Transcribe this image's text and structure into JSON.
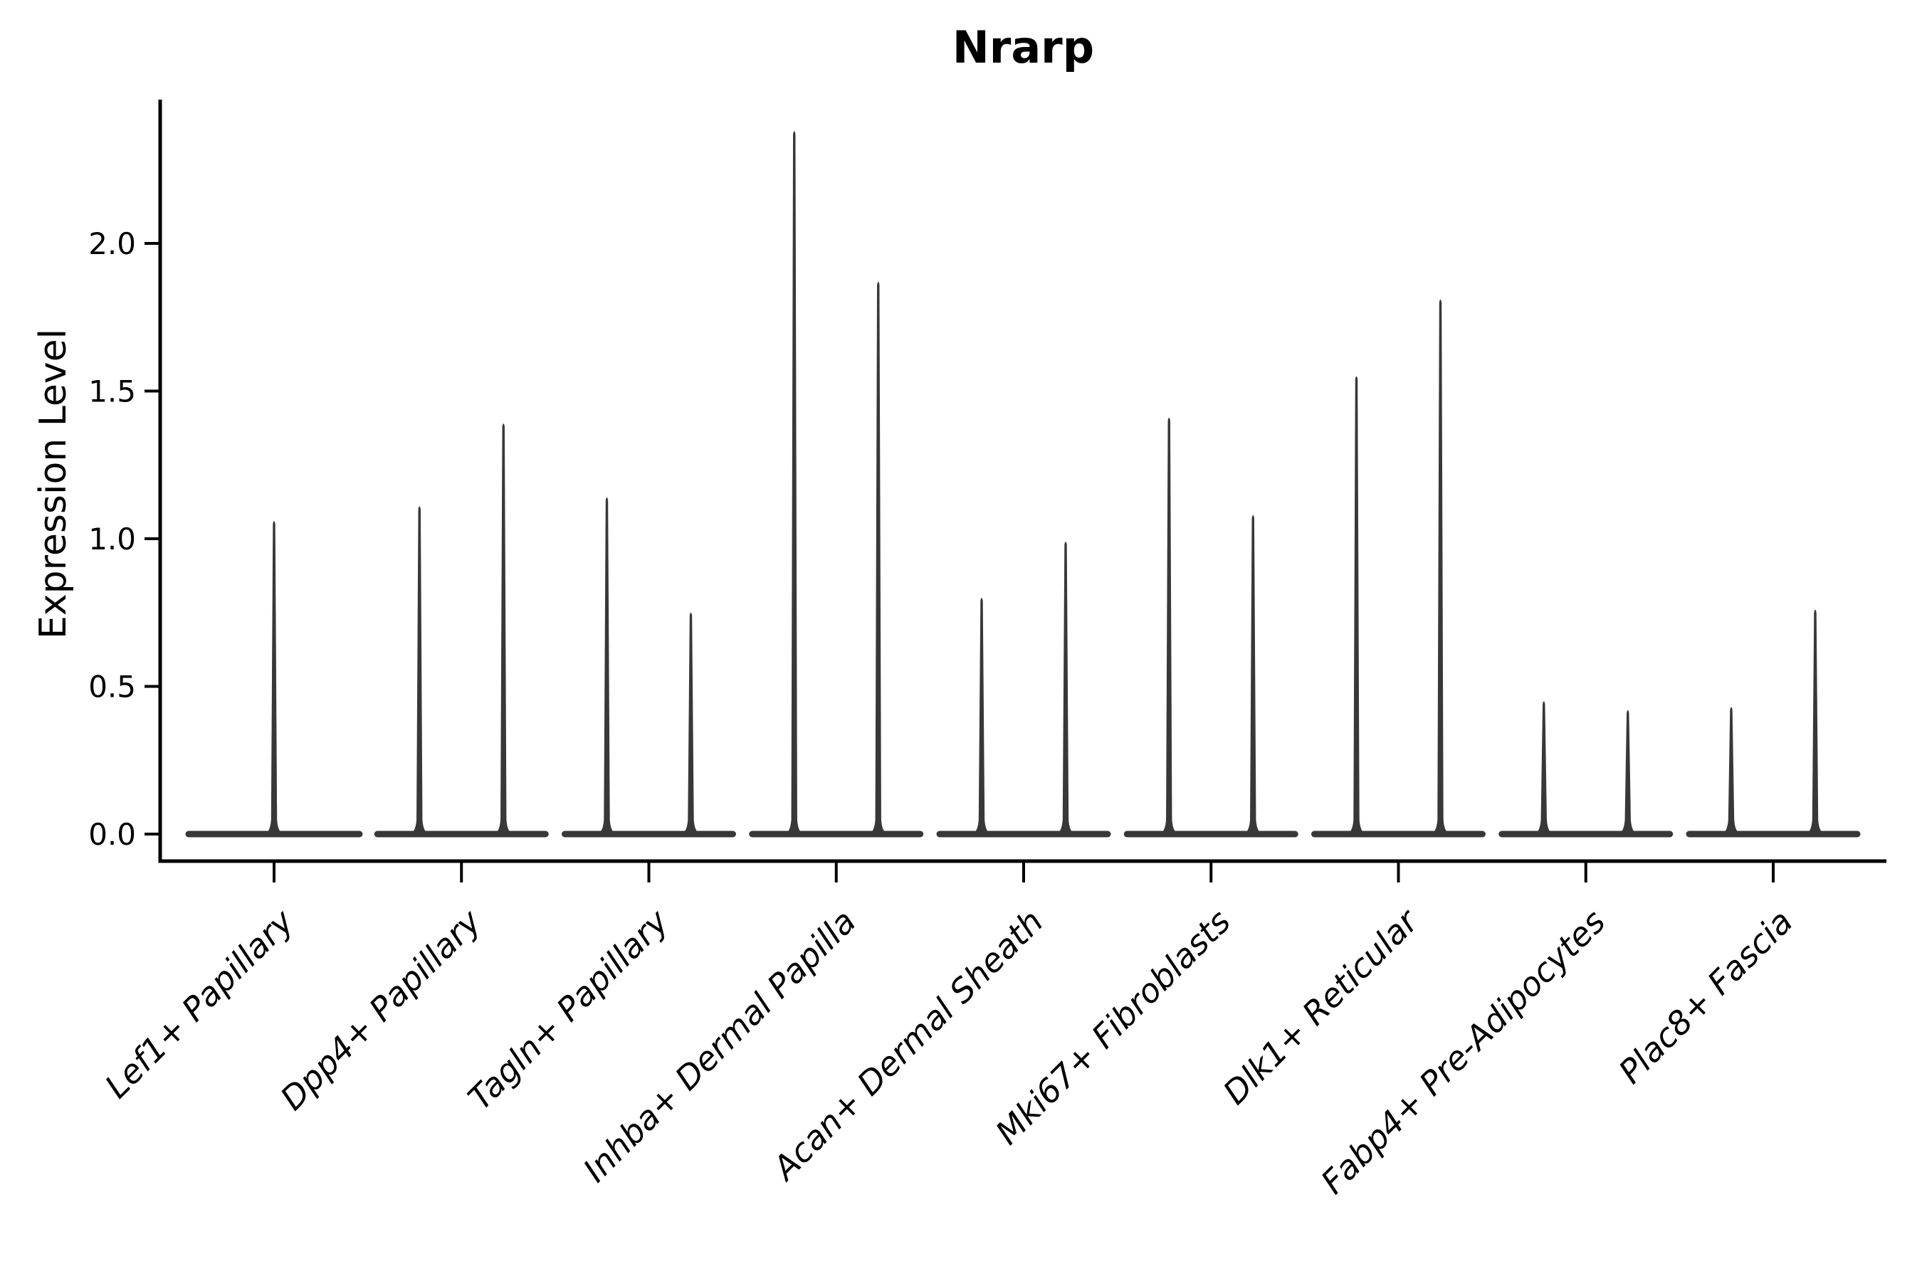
{
  "figure": {
    "background": "#ffffff"
  },
  "chart_data": {
    "type": "violin",
    "title": "Nrarp",
    "ylabel": "Expression Level",
    "xlabel": "",
    "legend": "none",
    "grid": false,
    "yticks": [
      "0.0",
      "0.5",
      "1.0",
      "1.5",
      "2.0"
    ],
    "ytick_values": [
      0.0,
      0.5,
      1.0,
      1.5,
      2.0
    ],
    "ylim": [
      -0.09,
      2.49
    ],
    "categories": [
      "Lef1+ Papillary",
      "Dpp4+ Papillary",
      "Tagln+ Papillary",
      "Inhba+ Dermal Papilla",
      "Acan+ Dermal Sheath",
      "Mki67+ Fibroblasts",
      "Dlk1+ Reticular",
      "Fabp4+ Pre-Adipocytes",
      "Plac8+ Fascia"
    ],
    "violins": [
      {
        "category": "Lef1+ Papillary",
        "spike_max_values": [
          1.06
        ]
      },
      {
        "category": "Dpp4+ Papillary",
        "spike_max_values": [
          1.11,
          1.39
        ]
      },
      {
        "category": "Tagln+ Papillary",
        "spike_max_values": [
          1.14,
          0.75
        ]
      },
      {
        "category": "Inhba+ Dermal Papilla",
        "spike_max_values": [
          2.38,
          1.87
        ]
      },
      {
        "category": "Acan+ Dermal Sheath",
        "spike_max_values": [
          0.8,
          0.99
        ]
      },
      {
        "category": "Mki67+ Fibroblasts",
        "spike_max_values": [
          1.41,
          1.08
        ]
      },
      {
        "category": "Dlk1+ Reticular",
        "spike_max_values": [
          1.55,
          1.81
        ]
      },
      {
        "category": "Fabp4+ Pre-Adipocytes",
        "spike_max_values": [
          0.45,
          0.42
        ]
      },
      {
        "category": "Plac8+ Fascia",
        "spike_max_values": [
          0.43,
          0.76
        ]
      }
    ],
    "colors": {
      "violin_stroke": "#383838",
      "axis": "#000000",
      "text": "#000000"
    }
  }
}
